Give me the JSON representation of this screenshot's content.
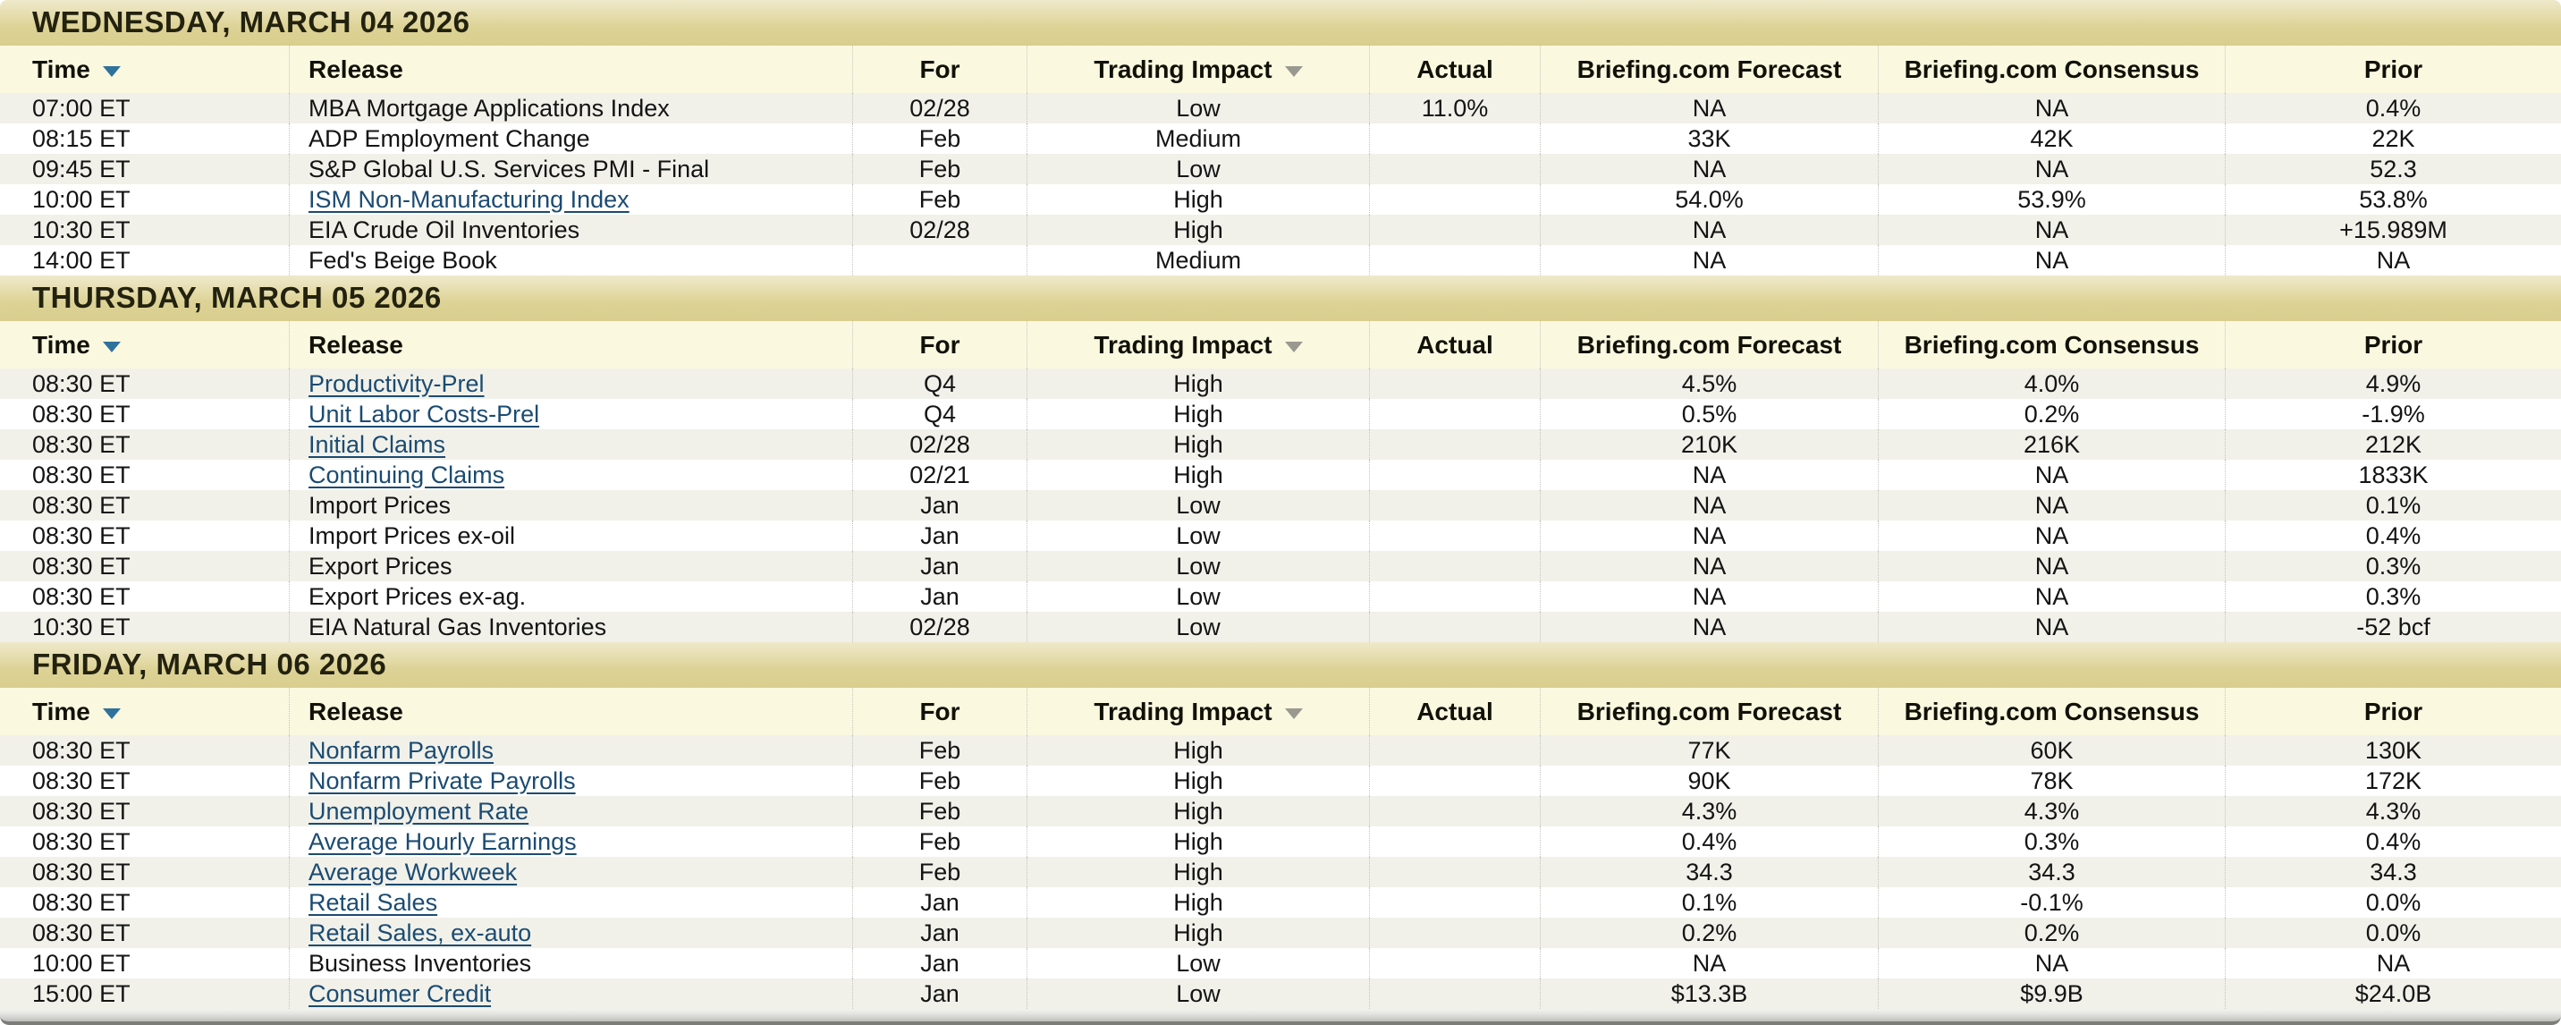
{
  "colors": {
    "day_band": "#d9ce8e",
    "day_band_top": "#efe9cb",
    "header_bg": "#fbf8e0",
    "row_alt_bg": "#f1f1ea",
    "row_bg": "#ffffff",
    "link": "#1b4b72",
    "sort_arrow_active": "#2f729c",
    "sort_arrow_inactive": "#999990",
    "text": "#141414"
  },
  "columns": [
    {
      "label": "Time",
      "key": "time",
      "sortable": true,
      "sort_active": true
    },
    {
      "label": "Release",
      "key": "release",
      "sortable": false,
      "sort_active": false
    },
    {
      "label": "For",
      "key": "for",
      "sortable": false,
      "sort_active": false
    },
    {
      "label": "Trading Impact",
      "key": "impact",
      "sortable": true,
      "sort_active": false
    },
    {
      "label": "Actual",
      "key": "actual",
      "sortable": false,
      "sort_active": false
    },
    {
      "label": "Briefing.com Forecast",
      "key": "forecast",
      "sortable": false,
      "sort_active": false
    },
    {
      "label": "Briefing.com Consensus",
      "key": "consensus",
      "sortable": false,
      "sort_active": false
    },
    {
      "label": "Prior",
      "key": "prior",
      "sortable": false,
      "sort_active": false
    }
  ],
  "sections": [
    {
      "date_header": "WEDNESDAY, MARCH 04 2026",
      "rows": [
        {
          "time": "07:00 ET",
          "release": "MBA Mortgage Applications Index",
          "is_link": false,
          "for": "02/28",
          "impact": "Low",
          "actual": "11.0%",
          "forecast": "NA",
          "consensus": "NA",
          "prior": "0.4%"
        },
        {
          "time": "08:15 ET",
          "release": "ADP Employment Change",
          "is_link": false,
          "for": "Feb",
          "impact": "Medium",
          "actual": "",
          "forecast": "33K",
          "consensus": "42K",
          "prior": "22K"
        },
        {
          "time": "09:45 ET",
          "release": "S&P Global U.S. Services PMI - Final",
          "is_link": false,
          "for": "Feb",
          "impact": "Low",
          "actual": "",
          "forecast": "NA",
          "consensus": "NA",
          "prior": "52.3"
        },
        {
          "time": "10:00 ET",
          "release": "ISM Non-Manufacturing Index",
          "is_link": true,
          "for": "Feb",
          "impact": "High",
          "actual": "",
          "forecast": "54.0%",
          "consensus": "53.9%",
          "prior": "53.8%"
        },
        {
          "time": "10:30 ET",
          "release": "EIA Crude Oil Inventories",
          "is_link": false,
          "for": "02/28",
          "impact": "High",
          "actual": "",
          "forecast": "NA",
          "consensus": "NA",
          "prior": "+15.989M"
        },
        {
          "time": "14:00 ET",
          "release": "Fed's Beige Book",
          "is_link": false,
          "for": "",
          "impact": "Medium",
          "actual": "",
          "forecast": "NA",
          "consensus": "NA",
          "prior": "NA"
        }
      ]
    },
    {
      "date_header": "THURSDAY, MARCH 05 2026",
      "rows": [
        {
          "time": "08:30 ET",
          "release": "Productivity-Prel",
          "is_link": true,
          "for": "Q4",
          "impact": "High",
          "actual": "",
          "forecast": "4.5%",
          "consensus": "4.0%",
          "prior": "4.9%"
        },
        {
          "time": "08:30 ET",
          "release": "Unit Labor Costs-Prel",
          "is_link": true,
          "for": "Q4",
          "impact": "High",
          "actual": "",
          "forecast": "0.5%",
          "consensus": "0.2%",
          "prior": "-1.9%"
        },
        {
          "time": "08:30 ET",
          "release": "Initial Claims",
          "is_link": true,
          "for": "02/28",
          "impact": "High",
          "actual": "",
          "forecast": "210K",
          "consensus": "216K",
          "prior": "212K"
        },
        {
          "time": "08:30 ET",
          "release": "Continuing Claims",
          "is_link": true,
          "for": "02/21",
          "impact": "High",
          "actual": "",
          "forecast": "NA",
          "consensus": "NA",
          "prior": "1833K"
        },
        {
          "time": "08:30 ET",
          "release": "Import Prices",
          "is_link": false,
          "for": "Jan",
          "impact": "Low",
          "actual": "",
          "forecast": "NA",
          "consensus": "NA",
          "prior": "0.1%"
        },
        {
          "time": "08:30 ET",
          "release": "Import Prices ex-oil",
          "is_link": false,
          "for": "Jan",
          "impact": "Low",
          "actual": "",
          "forecast": "NA",
          "consensus": "NA",
          "prior": "0.4%"
        },
        {
          "time": "08:30 ET",
          "release": "Export Prices",
          "is_link": false,
          "for": "Jan",
          "impact": "Low",
          "actual": "",
          "forecast": "NA",
          "consensus": "NA",
          "prior": "0.3%"
        },
        {
          "time": "08:30 ET",
          "release": "Export Prices ex-ag.",
          "is_link": false,
          "for": "Jan",
          "impact": "Low",
          "actual": "",
          "forecast": "NA",
          "consensus": "NA",
          "prior": "0.3%"
        },
        {
          "time": "10:30 ET",
          "release": "EIA Natural Gas Inventories",
          "is_link": false,
          "for": "02/28",
          "impact": "Low",
          "actual": "",
          "forecast": "NA",
          "consensus": "NA",
          "prior": "-52 bcf"
        }
      ]
    },
    {
      "date_header": "FRIDAY, MARCH 06 2026",
      "rows": [
        {
          "time": "08:30 ET",
          "release": "Nonfarm Payrolls",
          "is_link": true,
          "for": "Feb",
          "impact": "High",
          "actual": "",
          "forecast": "77K",
          "consensus": "60K",
          "prior": "130K"
        },
        {
          "time": "08:30 ET",
          "release": "Nonfarm Private Payrolls",
          "is_link": true,
          "for": "Feb",
          "impact": "High",
          "actual": "",
          "forecast": "90K",
          "consensus": "78K",
          "prior": "172K"
        },
        {
          "time": "08:30 ET",
          "release": "Unemployment Rate",
          "is_link": true,
          "for": "Feb",
          "impact": "High",
          "actual": "",
          "forecast": "4.3%",
          "consensus": "4.3%",
          "prior": "4.3%"
        },
        {
          "time": "08:30 ET",
          "release": "Average Hourly Earnings",
          "is_link": true,
          "for": "Feb",
          "impact": "High",
          "actual": "",
          "forecast": "0.4%",
          "consensus": "0.3%",
          "prior": "0.4%"
        },
        {
          "time": "08:30 ET",
          "release": "Average Workweek",
          "is_link": true,
          "for": "Feb",
          "impact": "High",
          "actual": "",
          "forecast": "34.3",
          "consensus": "34.3",
          "prior": "34.3"
        },
        {
          "time": "08:30 ET",
          "release": "Retail Sales",
          "is_link": true,
          "for": "Jan",
          "impact": "High",
          "actual": "",
          "forecast": "0.1%",
          "consensus": "-0.1%",
          "prior": "0.0%"
        },
        {
          "time": "08:30 ET",
          "release": "Retail Sales, ex-auto",
          "is_link": true,
          "for": "Jan",
          "impact": "High",
          "actual": "",
          "forecast": "0.2%",
          "consensus": "0.2%",
          "prior": "0.0%"
        },
        {
          "time": "10:00 ET",
          "release": "Business Inventories",
          "is_link": false,
          "for": "Jan",
          "impact": "Low",
          "actual": "",
          "forecast": "NA",
          "consensus": "NA",
          "prior": "NA"
        },
        {
          "time": "15:00 ET",
          "release": "Consumer Credit",
          "is_link": true,
          "for": "Jan",
          "impact": "Low",
          "actual": "",
          "forecast": "$13.3B",
          "consensus": "$9.9B",
          "prior": "$24.0B"
        }
      ]
    }
  ]
}
